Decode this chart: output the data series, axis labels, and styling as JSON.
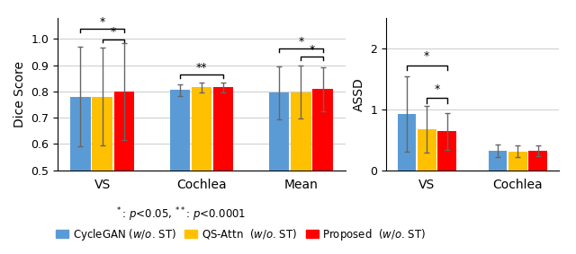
{
  "left_categories": [
    "VS",
    "Cochlea",
    "Mean"
  ],
  "right_categories": [
    "VS",
    "Cochlea"
  ],
  "bar_colors": [
    "#5B9BD5",
    "#FFC000",
    "#FF0000"
  ],
  "left_values": {
    "VS": [
      0.78,
      0.78,
      0.8
    ],
    "Cochlea": [
      0.805,
      0.815,
      0.815
    ],
    "Mean": [
      0.795,
      0.797,
      0.808
    ]
  },
  "left_errors": {
    "VS": [
      0.19,
      0.185,
      0.185
    ],
    "Cochlea": [
      0.022,
      0.018,
      0.018
    ],
    "Mean": [
      0.1,
      0.1,
      0.085
    ]
  },
  "right_values": {
    "VS": [
      0.92,
      0.67,
      0.64
    ],
    "Cochlea": [
      0.32,
      0.31,
      0.32
    ]
  },
  "right_errors": {
    "VS": [
      0.62,
      0.38,
      0.3
    ],
    "Cochlea": [
      0.1,
      0.1,
      0.09
    ]
  },
  "left_ylabel": "Dice Score",
  "right_ylabel": "ASSD",
  "left_ylim": [
    0.5,
    1.08
  ],
  "right_ylim": [
    0.0,
    2.5
  ],
  "left_yticks": [
    0.5,
    0.6,
    0.7,
    0.8,
    0.9,
    1.0
  ],
  "right_yticks": [
    0,
    1,
    2
  ],
  "bar_width": 0.22
}
